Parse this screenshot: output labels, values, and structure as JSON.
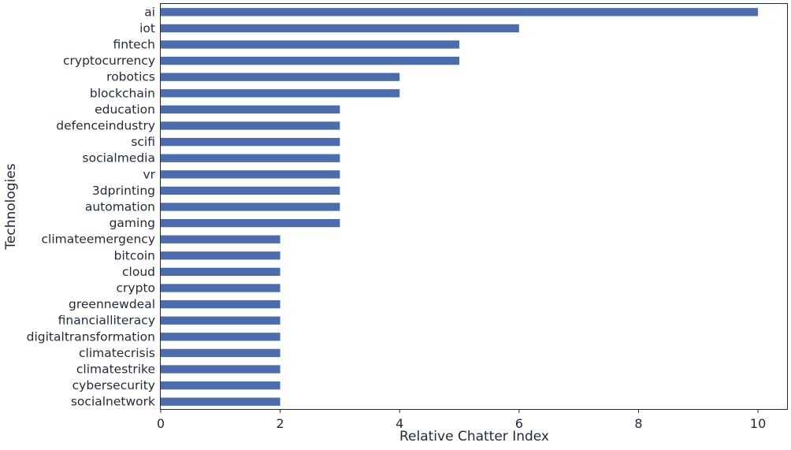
{
  "chart_data": {
    "type": "bar",
    "orientation": "horizontal",
    "title": "",
    "xlabel": "Relative Chatter Index",
    "ylabel": "Technologies",
    "xlim": [
      0,
      10.5
    ],
    "xticks": [
      0,
      2,
      4,
      6,
      8,
      10
    ],
    "grid": false,
    "bar_color": "#4c6dad",
    "categories": [
      "ai",
      "iot",
      "fintech",
      "cryptocurrency",
      "robotics",
      "blockchain",
      "education",
      "defenceindustry",
      "scifi",
      "socialmedia",
      "vr",
      "3dprinting",
      "automation",
      "gaming",
      "climateemergency",
      "bitcoin",
      "cloud",
      "crypto",
      "greennewdeal",
      "financialliteracy",
      "digitaltransformation",
      "climatecrisis",
      "climatestrike",
      "cybersecurity",
      "socialnetwork"
    ],
    "values": [
      10,
      6,
      5,
      5,
      4,
      4,
      3,
      3,
      3,
      3,
      3,
      3,
      3,
      3,
      2,
      2,
      2,
      2,
      2,
      2,
      2,
      2,
      2,
      2,
      2
    ]
  }
}
